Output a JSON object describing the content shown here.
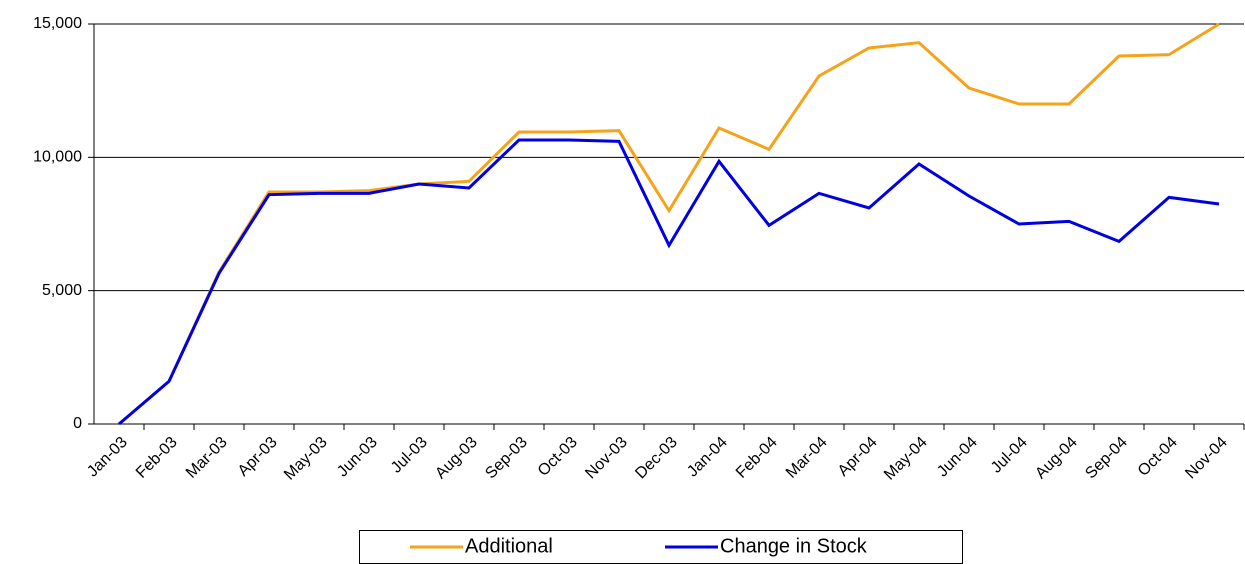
{
  "chart_data": {
    "type": "line",
    "categories": [
      "Jan-03",
      "Feb-03",
      "Mar-03",
      "Apr-03",
      "May-03",
      "Jun-03",
      "Jul-03",
      "Aug-03",
      "Sep-03",
      "Oct-03",
      "Nov-03",
      "Dec-03",
      "Jan-04",
      "Feb-04",
      "Mar-04",
      "Apr-04",
      "May-04",
      "Jun-04",
      "Jul-04",
      "Aug-04",
      "Sep-04",
      "Oct-04",
      "Nov-04"
    ],
    "series": [
      {
        "name": "Additional",
        "color": "#f5a31a",
        "values": [
          0,
          1600,
          5700,
          8700,
          8700,
          8750,
          9000,
          9100,
          10950,
          10950,
          11000,
          8000,
          11100,
          10300,
          13050,
          14100,
          14300,
          12600,
          12000,
          12000,
          13800,
          13850,
          15000
        ]
      },
      {
        "name": "Change in Stock",
        "color": "#0000e0",
        "values": [
          0,
          1600,
          5650,
          8600,
          8650,
          8650,
          9000,
          8850,
          10650,
          10650,
          10600,
          6700,
          9850,
          7450,
          8650,
          8100,
          9750,
          8550,
          7500,
          7600,
          6850,
          8500,
          8250
        ]
      }
    ],
    "ylim": [
      0,
      15000
    ],
    "yticks": [
      0,
      {
        "value": 5000,
        "label": "5,000"
      },
      {
        "value": 10000,
        "label": "10,000"
      },
      {
        "value": 15000,
        "label": "15,000"
      }
    ],
    "grid": true,
    "legend": "bottom"
  }
}
